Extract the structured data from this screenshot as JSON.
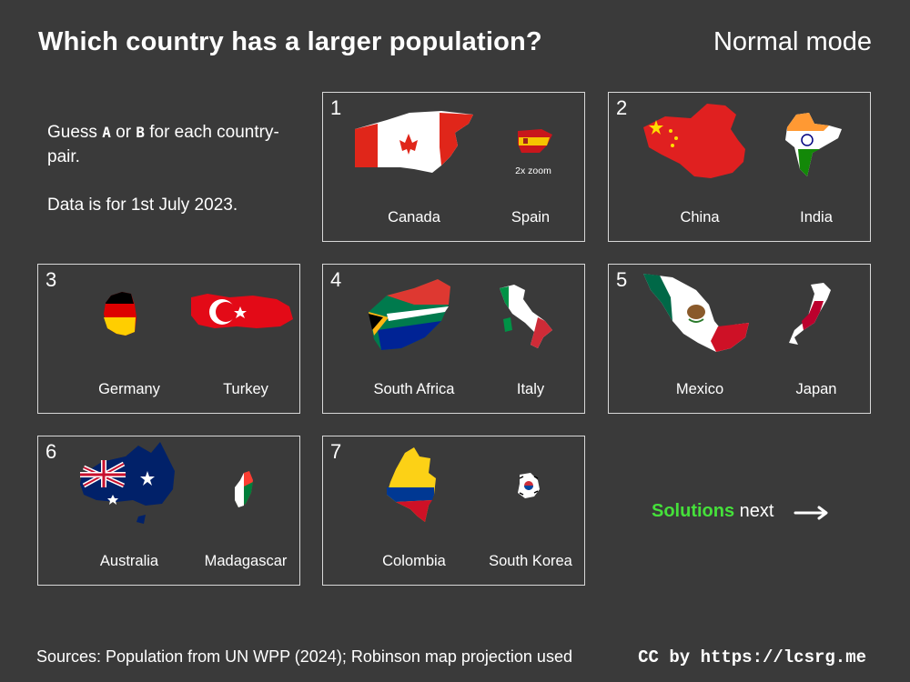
{
  "header": {
    "title": "Which country has a larger population?",
    "mode": "Normal mode"
  },
  "intro": {
    "guess_prefix": "Guess",
    "option_a": "A",
    "or": "or",
    "option_b": "B",
    "guess_suffix": "for each country-pair.",
    "data_note": "Data is for 1st July 2023."
  },
  "pairs": [
    {
      "num": "1",
      "a": "Canada",
      "b": "Spain",
      "note": "2x zoom"
    },
    {
      "num": "2",
      "a": "China",
      "b": "India"
    },
    {
      "num": "3",
      "a": "Germany",
      "b": "Turkey"
    },
    {
      "num": "4",
      "a": "South Africa",
      "b": "Italy"
    },
    {
      "num": "5",
      "a": "Mexico",
      "b": "Japan"
    },
    {
      "num": "6",
      "a": "Australia",
      "b": "Madagascar"
    },
    {
      "num": "7",
      "a": "Colombia",
      "b": "South Korea"
    }
  ],
  "next": {
    "highlight": "Solutions",
    "rest": "next",
    "highlight_color": "#45e03a"
  },
  "footer": {
    "sources": "Sources: Population from UN WPP (2024); Robinson map projection used",
    "license": "CC by https://lcsrg.me"
  },
  "icons": {
    "arrow": "right-arrow-icon"
  }
}
